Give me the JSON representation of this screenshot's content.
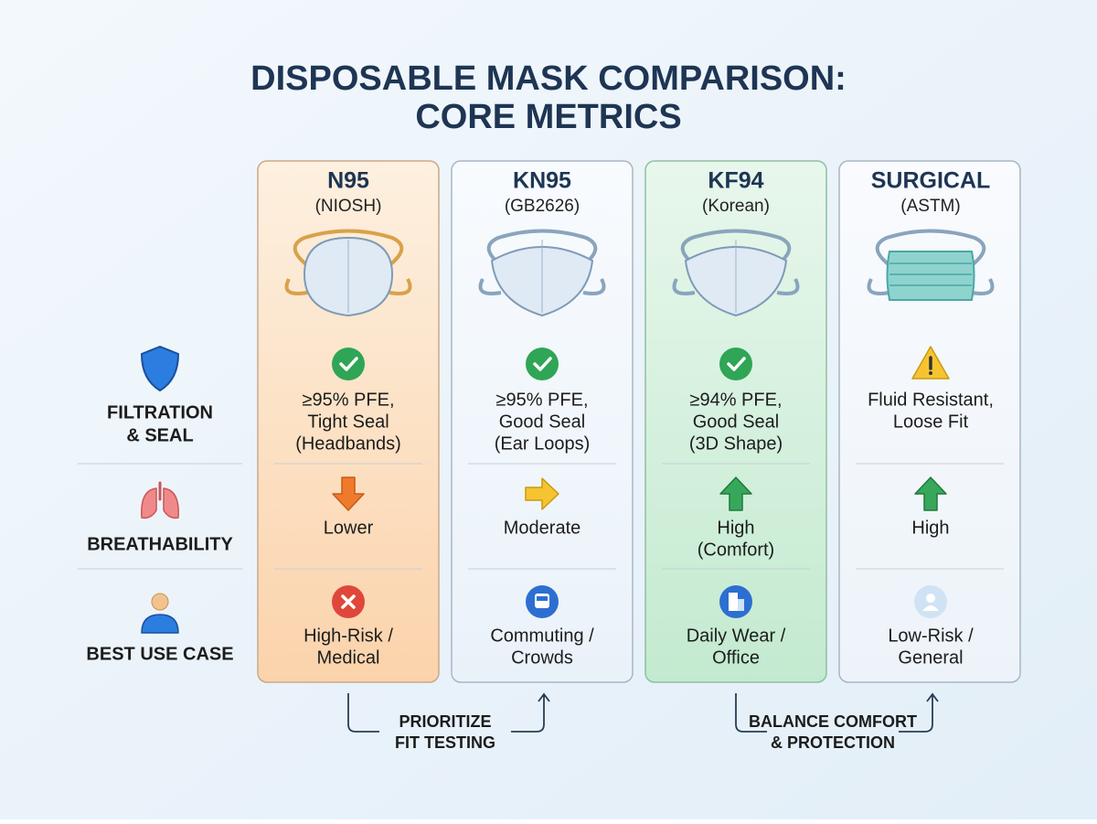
{
  "title_lines": [
    "DISPOSABLE MASK COMPARISON:",
    "CORE METRICS"
  ],
  "row_labels": [
    [
      "FILTRATION",
      "& SEAL"
    ],
    [
      "BREATHABILITY"
    ],
    [
      "BEST USE CASE"
    ]
  ],
  "columns": [
    {
      "name": "N95",
      "standard": "(NIOSH)",
      "cells": [
        [
          "≥95% PFE,",
          "Tight Seal",
          "(Headbands)"
        ],
        [
          "Lower"
        ],
        [
          "High-Risk /",
          "Medical"
        ]
      ]
    },
    {
      "name": "KN95",
      "standard": "(GB2626)",
      "cells": [
        [
          "≥95% PFE,",
          "Good Seal",
          "(Ear Loops)"
        ],
        [
          "Moderate"
        ],
        [
          "Commuting /",
          "Crowds"
        ]
      ]
    },
    {
      "name": "KF94",
      "standard": "(Korean)",
      "cells": [
        [
          "≥94% PFE,",
          "Good Seal",
          "(3D Shape)"
        ],
        [
          "High",
          "(Comfort)"
        ],
        [
          "Daily Wear /",
          "Office"
        ]
      ]
    },
    {
      "name": "SURGICAL",
      "standard": "(ASTM)",
      "cells": [
        [
          "Fluid Resistant,",
          "Loose Fit"
        ],
        [
          "High"
        ],
        [
          "Low-Risk /",
          "General"
        ]
      ]
    }
  ],
  "notes": [
    [
      "PRIORITIZE",
      "FIT TESTING"
    ],
    [
      "BALANCE COMFORT",
      "& PROTECTION"
    ]
  ]
}
